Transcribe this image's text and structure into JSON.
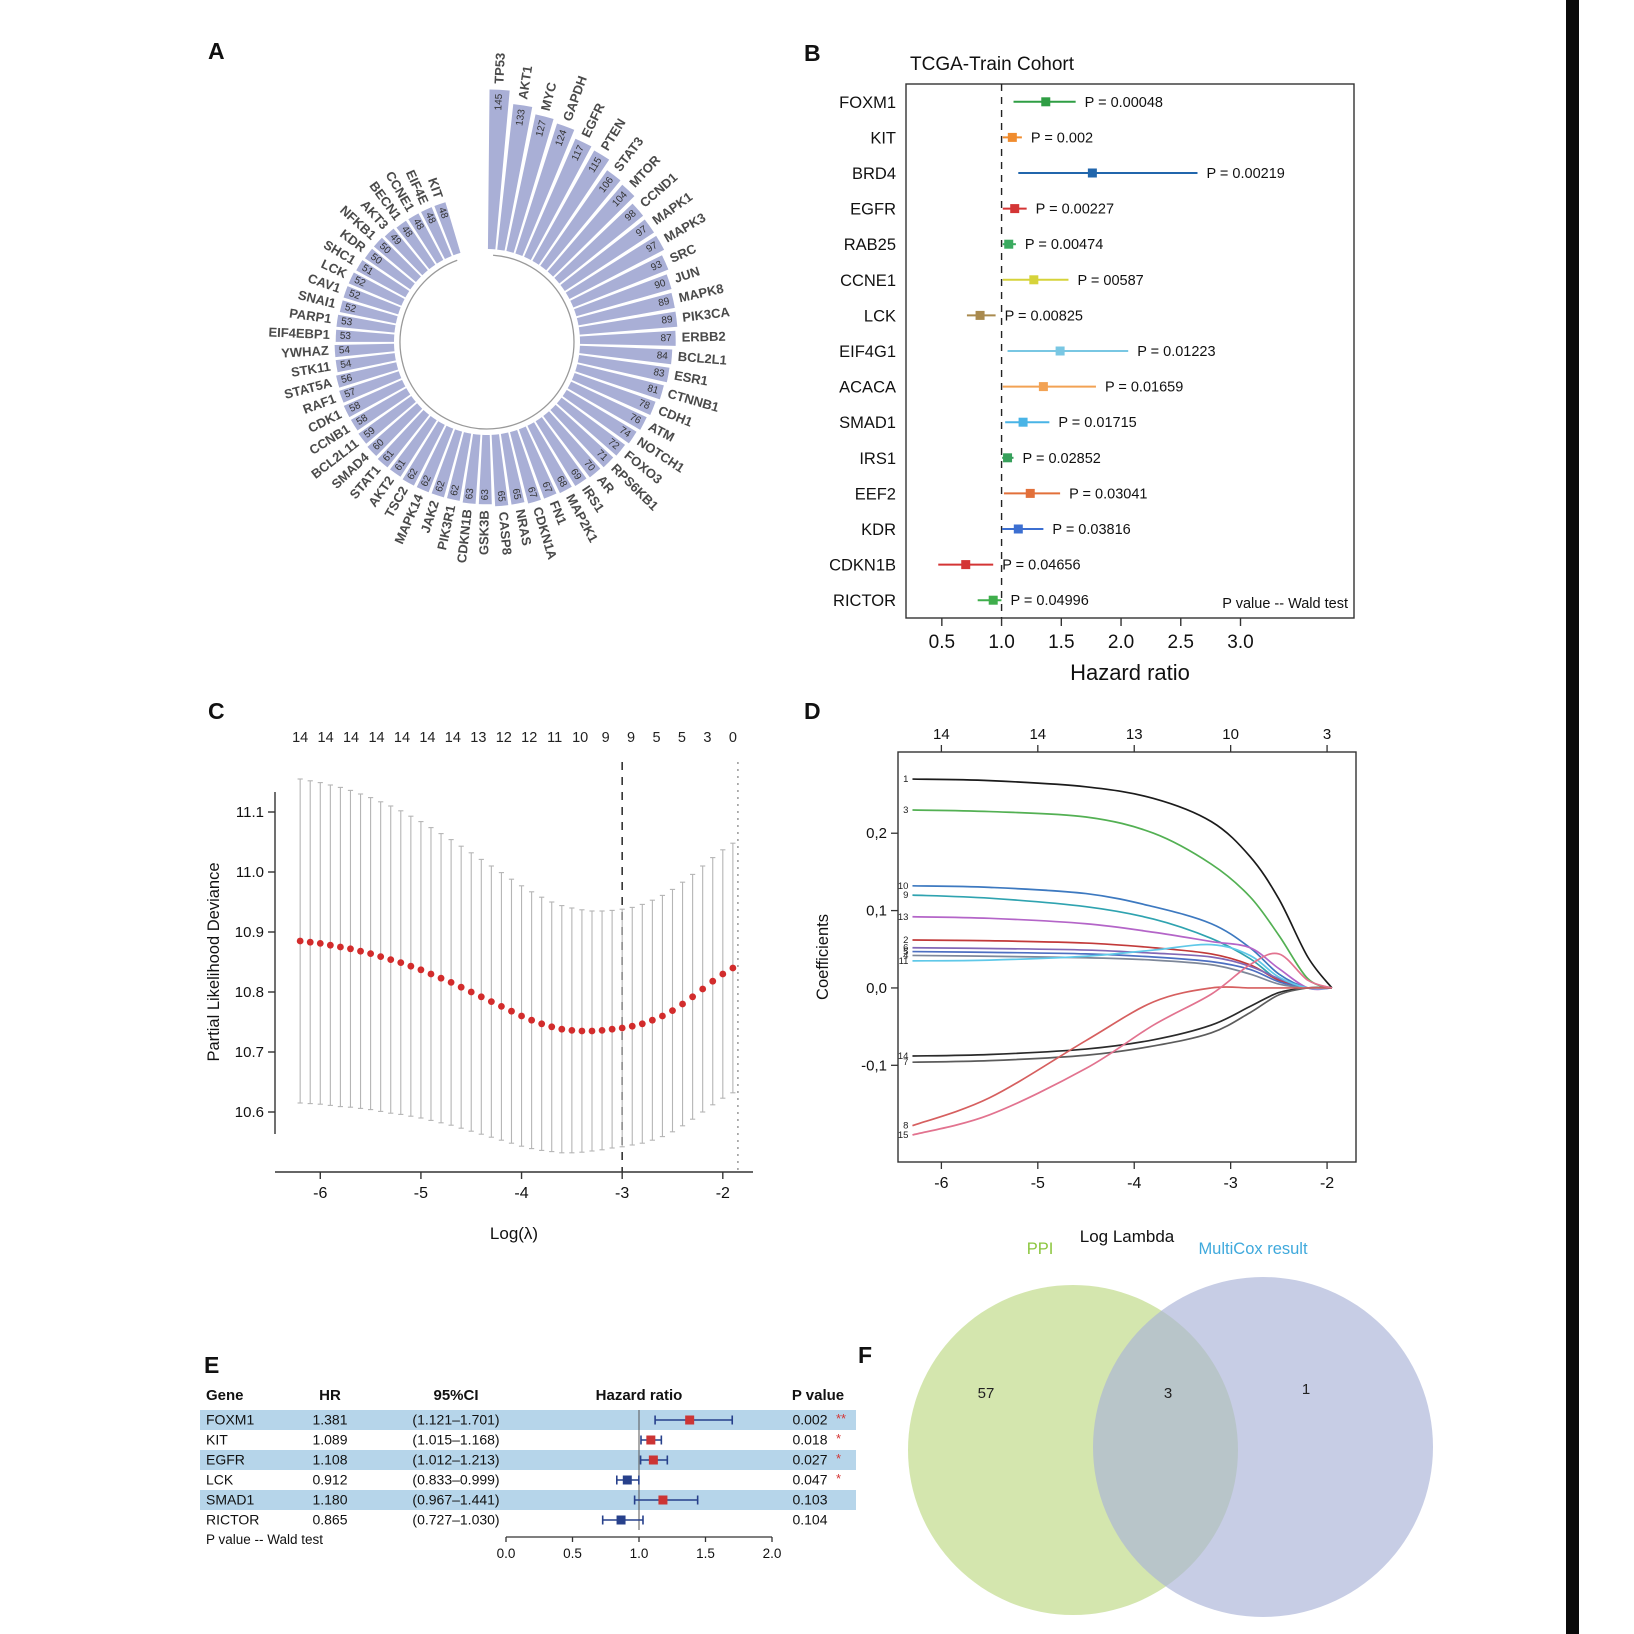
{
  "panels": {
    "a": "A",
    "b": "B",
    "c": "C",
    "d": "D",
    "e": "E",
    "f": "F"
  },
  "chart_data": [
    {
      "id": "panel_a",
      "type": "bar",
      "subtype": "circular",
      "bar_color": "#a9afd6",
      "categories": [
        "TP53",
        "AKT1",
        "MYC",
        "GAPDH",
        "EGFR",
        "PTEN",
        "STAT3",
        "MTOR",
        "CCND1",
        "MAPK1",
        "MAPK3",
        "SRC",
        "JUN",
        "MAPK8",
        "PIK3CA",
        "ERBB2",
        "BCL2L1",
        "ESR1",
        "CTNNB1",
        "CDH1",
        "ATM",
        "NOTCH1",
        "FOXO3",
        "RPS6KB1",
        "AR",
        "IRS1",
        "MAP2K1",
        "FN1",
        "CDKN1A",
        "NRAS",
        "CASP8",
        "GSK3B",
        "CDKN1B",
        "PIK3R1",
        "JAK2",
        "MAPK14",
        "TSC2",
        "AKT2",
        "STAT1",
        "SMAD4",
        "BCL2L11",
        "CCNB1",
        "CDK1",
        "RAF1",
        "STAT5A",
        "STK11",
        "YWHAZ",
        "EIF4EBP1",
        "PARP1",
        "SNAI1",
        "CAV1",
        "LCK",
        "SHC1",
        "KDR",
        "NFKB1",
        "AKT3",
        "BECN1",
        "CCNE1",
        "EIF4E",
        "KIT"
      ],
      "values": [
        145,
        133,
        127,
        124,
        117,
        115,
        106,
        104,
        98,
        97,
        97,
        93,
        90,
        89,
        89,
        87,
        84,
        83,
        81,
        78,
        76,
        74,
        72,
        71,
        70,
        69,
        68,
        67,
        67,
        65,
        65,
        63,
        63,
        62,
        62,
        62,
        62,
        61,
        61,
        60,
        59,
        58,
        58,
        57,
        56,
        54,
        54,
        53,
        53,
        52,
        52,
        52,
        51,
        50,
        50,
        49,
        48,
        48,
        48,
        48
      ]
    },
    {
      "id": "panel_b",
      "type": "scatter",
      "subtype": "forest",
      "title": "TCGA-Train Cohort",
      "xlabel": "Hazard ratio",
      "note": "P value -- Wald test",
      "xlim": [
        0.2,
        3.95
      ],
      "xticks": [
        0.5,
        1.0,
        1.5,
        2.0,
        2.5,
        3.0
      ],
      "xtick_labels": [
        "0.5",
        "1.0",
        "1.5",
        "2.0",
        "2.5",
        "3.0"
      ],
      "ref_line": 1.0,
      "rows": [
        {
          "gene": "FOXM1",
          "hr": 1.37,
          "lo": 1.1,
          "hi": 1.62,
          "color": "#2f9e44",
          "p_label": "P = 0.00048"
        },
        {
          "gene": "KIT",
          "hr": 1.09,
          "lo": 1.01,
          "hi": 1.17,
          "color": "#f08c2e",
          "p_label": "P = 0.002"
        },
        {
          "gene": "BRD4",
          "hr": 1.76,
          "lo": 1.14,
          "hi": 2.64,
          "color": "#2166ac",
          "p_label": "P = 0.00219"
        },
        {
          "gene": "EGFR",
          "hr": 1.11,
          "lo": 1.01,
          "hi": 1.21,
          "color": "#d43535",
          "p_label": "P = 0.00227"
        },
        {
          "gene": "RAB25",
          "hr": 1.06,
          "lo": 1.01,
          "hi": 1.12,
          "color": "#3aaa5f",
          "p_label": "P = 0.00474"
        },
        {
          "gene": "CCNE1",
          "hr": 1.27,
          "lo": 1.01,
          "hi": 1.56,
          "color": "#d6d33a",
          "p_label": "P = 00587"
        },
        {
          "gene": "LCK",
          "hr": 0.82,
          "lo": 0.71,
          "hi": 0.95,
          "color": "#a98a4e",
          "p_label": "P = 0.00825"
        },
        {
          "gene": "EIF4G1",
          "hr": 1.49,
          "lo": 1.05,
          "hi": 2.06,
          "color": "#79c7e3",
          "p_label": "P = 0.01223"
        },
        {
          "gene": "ACACA",
          "hr": 1.35,
          "lo": 1.01,
          "hi": 1.79,
          "color": "#f2a254",
          "p_label": "P = 0.01659"
        },
        {
          "gene": "SMAD1",
          "hr": 1.18,
          "lo": 1.03,
          "hi": 1.4,
          "color": "#49b4e6",
          "p_label": "P = 0.01715"
        },
        {
          "gene": "IRS1",
          "hr": 1.05,
          "lo": 1.005,
          "hi": 1.1,
          "color": "#37a05b",
          "p_label": "P = 0.02852"
        },
        {
          "gene": "EEF2",
          "hr": 1.24,
          "lo": 1.02,
          "hi": 1.49,
          "color": "#e2703a",
          "p_label": "P = 0.03041"
        },
        {
          "gene": "KDR",
          "hr": 1.14,
          "lo": 1.005,
          "hi": 1.35,
          "color": "#3c6fd1",
          "p_label": "P = 0.03816"
        },
        {
          "gene": "CDKN1B",
          "hr": 0.7,
          "lo": 0.47,
          "hi": 0.93,
          "color": "#d43535",
          "p_label": "P = 0.04656"
        },
        {
          "gene": "RICTOR",
          "hr": 0.93,
          "lo": 0.8,
          "hi": 0.999,
          "color": "#3fae4c",
          "p_label": "P = 0.04996"
        }
      ]
    },
    {
      "id": "panel_c",
      "type": "scatter",
      "subtype": "cv-curve",
      "xlabel": "Log(λ)",
      "ylabel": "Partial Likelihood Deviance",
      "top_labels": [
        "14",
        "14",
        "14",
        "14",
        "14",
        "14",
        "14",
        "13",
        "12",
        "12",
        "11",
        "10",
        "9",
        "9",
        "5",
        "5",
        "3",
        "0"
      ],
      "xlim": [
        -6.45,
        -1.7
      ],
      "ylim": [
        10.5,
        11.2
      ],
      "xticks": [
        -6,
        -5,
        -4,
        -3,
        -2
      ],
      "xtick_labels": [
        "-6",
        "-5",
        "-4",
        "-3",
        "-2"
      ],
      "yticks": [
        10.6,
        10.7,
        10.8,
        10.9,
        11.0,
        11.1
      ],
      "ytick_labels": [
        "10.6",
        "10.7",
        "10.8",
        "10.9",
        "11.0",
        "11.1"
      ],
      "vline_dashed": -3.0,
      "vline_dotted": -1.85,
      "x": [
        -6.2,
        -6.1,
        -6.0,
        -5.9,
        -5.8,
        -5.7,
        -5.6,
        -5.5,
        -5.4,
        -5.3,
        -5.2,
        -5.1,
        -5.0,
        -4.9,
        -4.8,
        -4.7,
        -4.6,
        -4.5,
        -4.4,
        -4.3,
        -4.2,
        -4.1,
        -4.0,
        -3.9,
        -3.8,
        -3.7,
        -3.6,
        -3.5,
        -3.4,
        -3.3,
        -3.2,
        -3.1,
        -3.0,
        -2.9,
        -2.8,
        -2.7,
        -2.6,
        -2.5,
        -2.4,
        -2.3,
        -2.2,
        -2.1,
        -2.0,
        -1.9
      ],
      "y": [
        10.885,
        10.883,
        10.881,
        10.878,
        10.875,
        10.872,
        10.868,
        10.864,
        10.859,
        10.854,
        10.849,
        10.843,
        10.837,
        10.83,
        10.823,
        10.816,
        10.808,
        10.8,
        10.792,
        10.784,
        10.776,
        10.768,
        10.76,
        10.753,
        10.747,
        10.742,
        10.738,
        10.736,
        10.735,
        10.735,
        10.736,
        10.738,
        10.74,
        10.743,
        10.747,
        10.753,
        10.76,
        10.769,
        10.78,
        10.792,
        10.805,
        10.818,
        10.83,
        10.84
      ],
      "err": [
        0.27,
        0.269,
        0.268,
        0.267,
        0.266,
        0.264,
        0.262,
        0.26,
        0.258,
        0.256,
        0.253,
        0.25,
        0.247,
        0.244,
        0.241,
        0.238,
        0.235,
        0.232,
        0.229,
        0.226,
        0.223,
        0.22,
        0.217,
        0.214,
        0.211,
        0.208,
        0.206,
        0.204,
        0.202,
        0.2,
        0.199,
        0.198,
        0.198,
        0.198,
        0.199,
        0.2,
        0.201,
        0.202,
        0.203,
        0.204,
        0.205,
        0.206,
        0.207,
        0.208
      ],
      "dot_color": "#d22c2c",
      "bar_color": "#b5b5b5"
    },
    {
      "id": "panel_d",
      "type": "line",
      "subtype": "lasso-paths",
      "xlabel": "Log Lambda",
      "ylabel": "Coefficients",
      "top_labels": [
        {
          "x": -6,
          "t": "14"
        },
        {
          "x": -5,
          "t": "14"
        },
        {
          "x": -4,
          "t": "13"
        },
        {
          "x": -3,
          "t": "10"
        },
        {
          "x": -2,
          "t": "3"
        }
      ],
      "xlim": [
        -6.45,
        -1.7
      ],
      "ylim": [
        -0.225,
        0.305
      ],
      "xticks": [
        -6,
        -5,
        -4,
        -3,
        -2
      ],
      "xtick_labels": [
        "-6",
        "-5",
        "-4",
        "-3",
        "-2"
      ],
      "yticks": [
        0.2,
        0.1,
        0.0,
        -0.1
      ],
      "ytick_labels": [
        "0,2",
        "0,1",
        "0,0",
        "-0,1"
      ],
      "x_samples": [
        -6.3,
        -5.5,
        -4.5,
        -3.8,
        -3.2,
        -2.8,
        -2.5,
        -2.2,
        -1.95
      ],
      "series": [
        {
          "label": "1",
          "color": "#1b1b1b",
          "values": [
            0.27,
            0.268,
            0.26,
            0.245,
            0.215,
            0.17,
            0.115,
            0.04,
            0
          ]
        },
        {
          "label": "3",
          "color": "#53b053",
          "values": [
            0.23,
            0.228,
            0.221,
            0.2,
            0.16,
            0.118,
            0.068,
            0.012,
            0
          ]
        },
        {
          "label": "10",
          "color": "#3d79c0",
          "values": [
            0.132,
            0.13,
            0.122,
            0.105,
            0.083,
            0.052,
            0.018,
            0,
            0
          ]
        },
        {
          "label": "9",
          "color": "#2fa3b0",
          "values": [
            0.12,
            0.116,
            0.105,
            0.089,
            0.064,
            0.038,
            0.01,
            0,
            0
          ]
        },
        {
          "label": "13",
          "color": "#b465c8",
          "values": [
            0.092,
            0.09,
            0.083,
            0.072,
            0.06,
            0.052,
            0.025,
            0,
            0
          ]
        },
        {
          "label": "2",
          "color": "#c23a3a",
          "values": [
            0.062,
            0.061,
            0.058,
            0.052,
            0.044,
            0.03,
            0.01,
            0,
            0
          ]
        },
        {
          "label": "6",
          "color": "#8167b6",
          "values": [
            0.052,
            0.051,
            0.049,
            0.045,
            0.04,
            0.028,
            0.012,
            0,
            0
          ]
        },
        {
          "label": "5",
          "color": "#4d6fc2",
          "values": [
            0.047,
            0.046,
            0.044,
            0.04,
            0.034,
            0.024,
            0.008,
            0,
            0
          ]
        },
        {
          "label": "4",
          "color": "#7d8799",
          "values": [
            0.042,
            0.041,
            0.039,
            0.036,
            0.03,
            0.018,
            0.005,
            0,
            0
          ]
        },
        {
          "label": "11",
          "color": "#5fc8e8",
          "values": [
            0.035,
            0.036,
            0.041,
            0.049,
            0.056,
            0.042,
            0.014,
            0,
            0
          ]
        },
        {
          "label": "14",
          "color": "#2a2a2a",
          "values": [
            -0.088,
            -0.086,
            -0.079,
            -0.067,
            -0.048,
            -0.024,
            -0.006,
            0,
            0
          ]
        },
        {
          "label": "7",
          "color": "#5c5c5c",
          "values": [
            -0.096,
            -0.094,
            -0.087,
            -0.075,
            -0.058,
            -0.032,
            -0.009,
            0,
            0
          ]
        },
        {
          "label": "8",
          "color": "#d65f5f",
          "values": [
            -0.178,
            -0.142,
            -0.068,
            -0.018,
            0,
            0,
            0,
            0,
            0
          ]
        },
        {
          "label": "15",
          "color": "#e2738f",
          "values": [
            -0.19,
            -0.164,
            -0.104,
            -0.048,
            -0.008,
            0.03,
            0.044,
            0.01,
            0
          ]
        }
      ]
    },
    {
      "id": "panel_e",
      "type": "table",
      "subtype": "forest-table",
      "headers": {
        "gene": "Gene",
        "hr": "HR",
        "ci": "95%CI",
        "plot": "Hazard ratio",
        "p": "P value"
      },
      "footer": "P value -- Wald test",
      "axis_ticks": [
        0.0,
        0.5,
        1.0,
        1.5,
        2.0
      ],
      "axis_tick_labels": [
        "0.0",
        "0.5",
        "1.0",
        "1.5",
        "2.0"
      ],
      "band_color": "#b6d5ea",
      "whisker_color": "#27408b",
      "pos_color": "#cc3434",
      "neg_color": "#27408b",
      "rows": [
        {
          "gene": "FOXM1",
          "hr_text": "1.381",
          "ci_text": "(1.121–1.701)",
          "hr": 1.381,
          "lo": 1.121,
          "hi": 1.701,
          "p": "0.002",
          "stars": "**",
          "highlight": true
        },
        {
          "gene": "KIT",
          "hr_text": "1.089",
          "ci_text": "(1.015–1.168)",
          "hr": 1.089,
          "lo": 1.015,
          "hi": 1.168,
          "p": "0.018",
          "stars": "*",
          "highlight": false
        },
        {
          "gene": "EGFR",
          "hr_text": "1.108",
          "ci_text": "(1.012–1.213)",
          "hr": 1.108,
          "lo": 1.012,
          "hi": 1.213,
          "p": "0.027",
          "stars": "*",
          "highlight": true
        },
        {
          "gene": "LCK",
          "hr_text": "0.912",
          "ci_text": "(0.833–0.999)",
          "hr": 0.912,
          "lo": 0.833,
          "hi": 0.999,
          "p": "0.047",
          "stars": "*",
          "highlight": false
        },
        {
          "gene": "SMAD1",
          "hr_text": "1.180",
          "ci_text": "(0.967–1.441)",
          "hr": 1.18,
          "lo": 0.967,
          "hi": 1.441,
          "p": "0.103",
          "stars": "",
          "highlight": true
        },
        {
          "gene": "RICTOR",
          "hr_text": "0.865",
          "ci_text": "(0.727–1.030)",
          "hr": 0.865,
          "lo": 0.727,
          "hi": 1.03,
          "p": "0.104",
          "stars": "",
          "highlight": false
        }
      ]
    },
    {
      "id": "panel_f",
      "type": "venn",
      "left_label": "PPI",
      "right_label": "MultiCox result",
      "left_count": "57",
      "overlap_count": "3",
      "right_count": "1",
      "left_color": "#c9e09a",
      "right_color": "#aab3d8",
      "left_label_color": "#8cc63f",
      "right_label_color": "#3fa9dc"
    }
  ]
}
